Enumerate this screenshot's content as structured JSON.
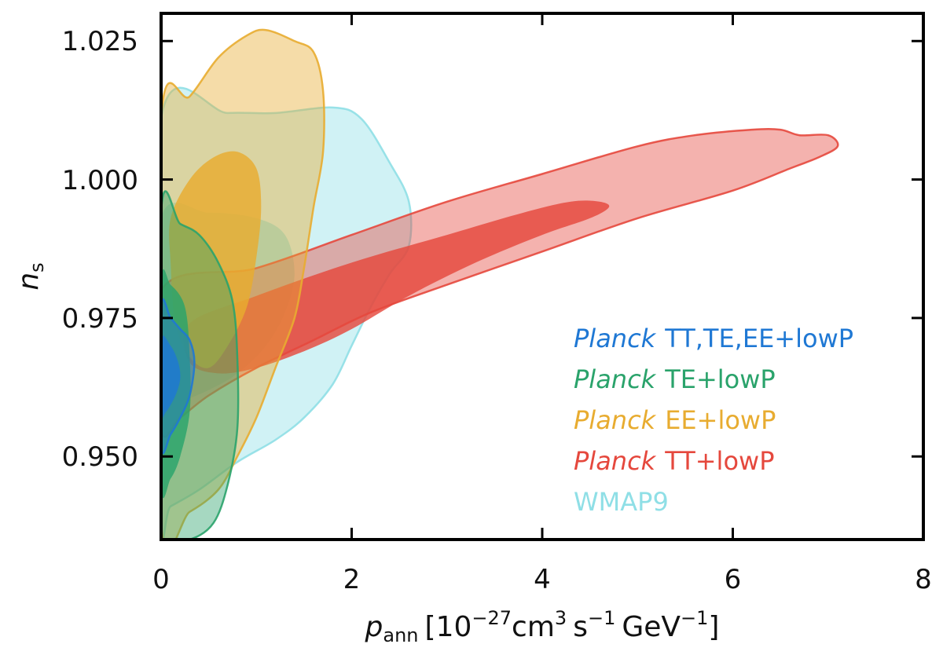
{
  "chart_data": {
    "type": "contour",
    "title": "",
    "xlabel": {
      "var": "p",
      "var_sub": "ann",
      "units_lead": "[10",
      "units_lead_exp": "−27",
      "units_cm": "cm",
      "units_cm_exp": "3",
      "units_s": "s",
      "units_s_exp": "−1",
      "units_gev": "GeV",
      "units_gev_exp": "−1",
      "units_close": "]"
    },
    "ylabel": {
      "var": "n",
      "var_sub": "s"
    },
    "xlim": [
      0,
      8
    ],
    "ylim": [
      0.935,
      1.03
    ],
    "x_ticks": [
      0,
      2,
      4,
      6,
      8
    ],
    "x_tick_labels": [
      "0",
      "2",
      "4",
      "6",
      "8"
    ],
    "y_ticks": [
      0.95,
      0.975,
      1.0,
      1.025
    ],
    "y_tick_labels": [
      "0.950",
      "0.975",
      "1.000",
      "1.025"
    ],
    "legend_position": "bottom-right",
    "series": [
      {
        "name": "WMAP9",
        "label_italic": "",
        "label_rest": "WMAP9",
        "color": "#8fdfe6",
        "region_95": [
          [
            0,
            1.011
          ],
          [
            0.7,
            1.012
          ],
          [
            1.2,
            1.012
          ],
          [
            1.8,
            1.013
          ],
          [
            2.1,
            1.011
          ],
          [
            2.4,
            1.003
          ],
          [
            2.6,
            0.996
          ],
          [
            2.6,
            0.988
          ],
          [
            2.4,
            0.983
          ],
          [
            2.2,
            0.977
          ],
          [
            2.0,
            0.97
          ],
          [
            1.8,
            0.963
          ],
          [
            1.5,
            0.957
          ],
          [
            1.2,
            0.953
          ],
          [
            0.8,
            0.949
          ],
          [
            0.4,
            0.944
          ],
          [
            0.1,
            0.941
          ],
          [
            0,
            0.94
          ]
        ],
        "region_68": [
          [
            0,
            0.993
          ],
          [
            0.5,
            0.994
          ],
          [
            1.0,
            0.993
          ],
          [
            1.3,
            0.99
          ],
          [
            1.4,
            0.983
          ],
          [
            1.3,
            0.976
          ],
          [
            1.1,
            0.97
          ],
          [
            0.8,
            0.965
          ],
          [
            0.5,
            0.962
          ],
          [
            0.2,
            0.96
          ],
          [
            0,
            0.96
          ]
        ]
      },
      {
        "name": "Planck TT+lowP",
        "label_italic": "Planck",
        "label_rest": "TT+lowP",
        "color": "#e5483d",
        "region_95": [
          [
            0,
            0.98
          ],
          [
            1.0,
            0.984
          ],
          [
            2.0,
            0.99
          ],
          [
            3.0,
            0.996
          ],
          [
            4.0,
            1.001
          ],
          [
            5.0,
            1.006
          ],
          [
            5.6,
            1.008
          ],
          [
            6.2,
            1.009
          ],
          [
            6.5,
            1.009
          ],
          [
            6.7,
            1.008
          ],
          [
            7.0,
            1.008
          ],
          [
            7.1,
            1.006
          ],
          [
            6.9,
            1.004
          ],
          [
            6.6,
            1.002
          ],
          [
            6.0,
            0.998
          ],
          [
            5.0,
            0.993
          ],
          [
            4.0,
            0.987
          ],
          [
            3.0,
            0.981
          ],
          [
            2.2,
            0.976
          ],
          [
            1.6,
            0.971
          ],
          [
            1.0,
            0.966
          ],
          [
            0.5,
            0.961
          ],
          [
            0.2,
            0.957
          ],
          [
            0,
            0.955
          ]
        ],
        "region_68": [
          [
            0.3,
            0.974
          ],
          [
            1.0,
            0.979
          ],
          [
            2.0,
            0.985
          ],
          [
            3.0,
            0.99
          ],
          [
            3.8,
            0.994
          ],
          [
            4.3,
            0.996
          ],
          [
            4.6,
            0.996
          ],
          [
            4.7,
            0.995
          ],
          [
            4.5,
            0.993
          ],
          [
            4.0,
            0.99
          ],
          [
            3.3,
            0.985
          ],
          [
            2.6,
            0.979
          ],
          [
            2.0,
            0.973
          ],
          [
            1.5,
            0.969
          ],
          [
            1.0,
            0.966
          ],
          [
            0.6,
            0.965
          ],
          [
            0.3,
            0.967
          ]
        ]
      },
      {
        "name": "Planck EE+lowP",
        "label_italic": "Planck",
        "label_rest": "EE+lowP",
        "color": "#e8ac30",
        "region_95": [
          [
            0,
            1.011
          ],
          [
            0.3,
            1.015
          ],
          [
            0.6,
            1.022
          ],
          [
            0.9,
            1.026
          ],
          [
            1.1,
            1.027
          ],
          [
            1.4,
            1.025
          ],
          [
            1.6,
            1.023
          ],
          [
            1.7,
            1.016
          ],
          [
            1.7,
            1.005
          ],
          [
            1.6,
            0.995
          ],
          [
            1.5,
            0.984
          ],
          [
            1.4,
            0.975
          ],
          [
            1.2,
            0.966
          ],
          [
            1.0,
            0.957
          ],
          [
            0.8,
            0.95
          ],
          [
            0.6,
            0.944
          ],
          [
            0.3,
            0.94
          ],
          [
            0,
            0.938
          ]
        ],
        "region_68": [
          [
            0.1,
            0.993
          ],
          [
            0.3,
            1.0
          ],
          [
            0.55,
            1.004
          ],
          [
            0.8,
            1.005
          ],
          [
            1.0,
            1.002
          ],
          [
            1.05,
            0.995
          ],
          [
            1.0,
            0.986
          ],
          [
            0.9,
            0.977
          ],
          [
            0.7,
            0.97
          ],
          [
            0.5,
            0.966
          ],
          [
            0.3,
            0.968
          ],
          [
            0.15,
            0.974
          ],
          [
            0.1,
            0.985
          ]
        ]
      },
      {
        "name": "Planck TE+lowP",
        "label_italic": "Planck",
        "label_rest": "TE+lowP",
        "color": "#2aa36b",
        "region_95": [
          [
            0,
            0.994
          ],
          [
            0.2,
            0.992
          ],
          [
            0.4,
            0.99
          ],
          [
            0.6,
            0.985
          ],
          [
            0.75,
            0.978
          ],
          [
            0.8,
            0.968
          ],
          [
            0.8,
            0.955
          ],
          [
            0.7,
            0.945
          ],
          [
            0.55,
            0.938
          ],
          [
            0.3,
            0.935
          ],
          [
            0,
            0.935
          ]
        ],
        "region_68": [
          [
            0,
            0.981
          ],
          [
            0.1,
            0.981
          ],
          [
            0.25,
            0.977
          ],
          [
            0.3,
            0.968
          ],
          [
            0.3,
            0.958
          ],
          [
            0.2,
            0.95
          ],
          [
            0.1,
            0.946
          ],
          [
            0,
            0.945
          ]
        ]
      },
      {
        "name": "Planck TT,TE,EE+lowP",
        "label_italic": "Planck",
        "label_rest": "TT,TE,EE+lowP",
        "color": "#1f78d4",
        "region_95": [
          [
            0,
            0.977
          ],
          [
            0.1,
            0.975
          ],
          [
            0.2,
            0.973
          ],
          [
            0.3,
            0.971
          ],
          [
            0.35,
            0.967
          ],
          [
            0.3,
            0.961
          ],
          [
            0.2,
            0.957
          ],
          [
            0.1,
            0.954
          ],
          [
            0,
            0.952
          ]
        ],
        "region_68": [
          [
            0,
            0.971
          ],
          [
            0.1,
            0.97
          ],
          [
            0.18,
            0.967
          ],
          [
            0.2,
            0.964
          ],
          [
            0.15,
            0.961
          ],
          [
            0.05,
            0.958
          ],
          [
            0,
            0.958
          ]
        ]
      }
    ]
  }
}
